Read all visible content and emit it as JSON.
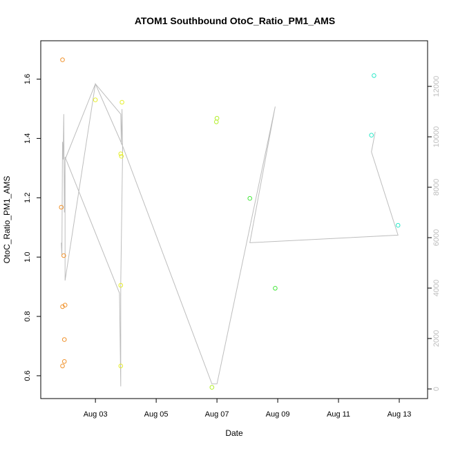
{
  "chart_data": {
    "type": "scatter",
    "title": "ATOM1 Southbound OtoC_Ratio_PM1_AMS",
    "xlabel": "Date",
    "ylabel": "OtoC_Ratio_PM1_AMS",
    "xlim": [
      "2024-08-01 07:00",
      "2024-08-13 12:00"
    ],
    "ylim": [
      0.53,
      1.72
    ],
    "x_ticks": [
      "Aug 03",
      "Aug 05",
      "Aug 07",
      "Aug 09",
      "Aug 11",
      "Aug 13"
    ],
    "y_ticks": [
      "0.6",
      "0.8",
      "1.0",
      "1.2",
      "1.4",
      "1.6"
    ],
    "y2_ticks": [
      "0",
      "2000",
      "4000",
      "6000",
      "8000",
      "10000",
      "12000"
    ],
    "y2_range": [
      -300,
      13700
    ],
    "grid": false,
    "legend": "none",
    "colors": {
      "orange": "#f0922c",
      "yellow": "#e6ef2c",
      "lime": "#b4ef2c",
      "green": "#44e83a",
      "cyan": "#2ce8c8",
      "line": "#bdbdbd"
    },
    "points": [
      {
        "x": "2024-08-01 22:00",
        "y": 1.665,
        "color": "orange"
      },
      {
        "x": "2024-08-01 21:00",
        "y": 1.168,
        "color": "orange"
      },
      {
        "x": "2024-08-01 23:00",
        "y": 1.005,
        "color": "orange"
      },
      {
        "x": "2024-08-01 22:00",
        "y": 0.833,
        "color": "orange"
      },
      {
        "x": "2024-08-02 00:00",
        "y": 0.838,
        "color": "orange"
      },
      {
        "x": "2024-08-01 23:30",
        "y": 0.722,
        "color": "orange"
      },
      {
        "x": "2024-08-01 23:30",
        "y": 0.648,
        "color": "orange"
      },
      {
        "x": "2024-08-01 22:00",
        "y": 0.633,
        "color": "orange"
      },
      {
        "x": "2024-08-03 00:00",
        "y": 1.53,
        "color": "yellow"
      },
      {
        "x": "2024-08-03 21:00",
        "y": 1.522,
        "color": "yellow"
      },
      {
        "x": "2024-08-03 20:00",
        "y": 1.348,
        "color": "yellow"
      },
      {
        "x": "2024-08-03 20:30",
        "y": 1.34,
        "color": "yellow"
      },
      {
        "x": "2024-08-03 20:00",
        "y": 0.905,
        "color": "yellow"
      },
      {
        "x": "2024-08-03 20:00",
        "y": 0.633,
        "color": "yellow"
      },
      {
        "x": "2024-08-06 20:00",
        "y": 0.561,
        "color": "lime"
      },
      {
        "x": "2024-08-07 00:00",
        "y": 1.468,
        "color": "lime"
      },
      {
        "x": "2024-08-06 23:30",
        "y": 1.456,
        "color": "lime"
      },
      {
        "x": "2024-08-08 02:00",
        "y": 1.198,
        "color": "green"
      },
      {
        "x": "2024-08-08 22:00",
        "y": 0.895,
        "color": "green"
      },
      {
        "x": "2024-08-12 02:00",
        "y": 1.411,
        "color": "cyan"
      },
      {
        "x": "2024-08-12 04:00",
        "y": 1.612,
        "color": "cyan"
      },
      {
        "x": "2024-08-12 23:00",
        "y": 1.107,
        "color": "cyan"
      }
    ],
    "line_series": {
      "axis": "right",
      "color": "line",
      "x": [
        "2024-08-01 21:00",
        "2024-08-01 21:30",
        "2024-08-01 22:00",
        "2024-08-01 22:30",
        "2024-08-01 23:00",
        "2024-08-01 23:30",
        "2024-08-02 00:00",
        "2024-08-03 00:00",
        "2024-08-03 20:00",
        "2024-08-03 20:30",
        "2024-08-03 21:00",
        "2024-08-03 21:30",
        "2024-08-03 20:00",
        "2024-08-03 20:00",
        "2024-08-03 19:00",
        "2024-08-02 00:00",
        "2024-08-02 00:00",
        "2024-08-02 00:00",
        "2024-08-03 00:00",
        "2024-08-03 21:00",
        "2024-08-06 20:00",
        "2024-08-07 00:00",
        "2024-08-08 22:00",
        "2024-08-08 02:00",
        "2024-08-12 23:00",
        "2024-08-12 02:00",
        "2024-08-12 05:00"
      ],
      "y": [
        5800,
        5300,
        9800,
        9100,
        10900,
        7000,
        9100,
        12100,
        10900,
        9700,
        11100,
        9400,
        4200,
        100,
        3800,
        9200,
        4300,
        4300,
        12100,
        9700,
        200,
        200,
        11200,
        5800,
        6100,
        9400,
        10200
      ]
    }
  }
}
